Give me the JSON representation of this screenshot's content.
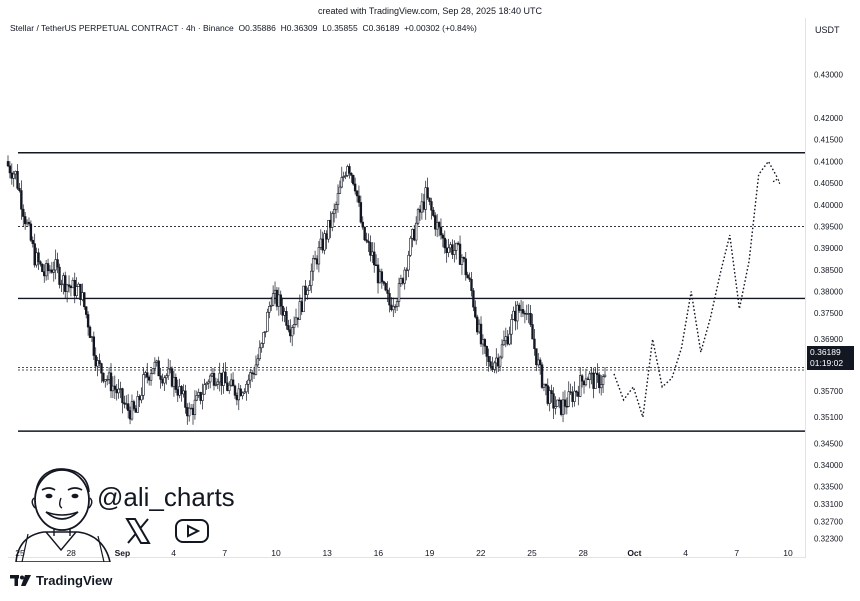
{
  "caption": "created with TradingView.com, Sep 28, 2025 18:40 UTC",
  "legend": {
    "symbol": "Stellar / TetherUS PERPETUAL CONTRACT · 4h · Binance",
    "o_label": "O",
    "o": "0.35886",
    "h_label": "H",
    "h": "0.36309",
    "l_label": "L",
    "l": "0.35855",
    "c_label": "C",
    "c": "0.36189",
    "change": "+0.00302 (+0.84%)"
  },
  "unit": "USDT",
  "price_badge": {
    "price": "0.36189",
    "countdown": "01:19:02"
  },
  "handle": "@ali_charts",
  "brand": "TradingView",
  "colors": {
    "candle": "#131722",
    "background": "#ffffff",
    "badge": "#131722"
  },
  "icons": {
    "x": "x-logo-icon",
    "youtube": "youtube-play-icon",
    "avatar": "cartoon-avatar-icon",
    "brand": "tradingview-logo-icon"
  },
  "chart_data": {
    "type": "candlestick",
    "timeframe": "4h",
    "ylim": [
      0.319,
      0.438
    ],
    "y_ticks": [
      "0.43000",
      "0.42000",
      "0.41500",
      "0.41000",
      "0.40500",
      "0.40000",
      "0.39500",
      "0.39000",
      "0.38500",
      "0.38000",
      "0.37500",
      "0.36900",
      "0.35700",
      "0.35100",
      "0.34500",
      "0.34000",
      "0.33500",
      "0.33100",
      "0.32700",
      "0.32300"
    ],
    "x_ticks": [
      "25",
      "28",
      "Sep",
      "4",
      "7",
      "10",
      "13",
      "16",
      "19",
      "22",
      "25",
      "28",
      "Oct",
      "4",
      "7",
      "10"
    ],
    "x_ticks_bold": [
      "Sep",
      "Oct"
    ],
    "horizontal_levels": [
      {
        "price": 0.412,
        "style": "solid"
      },
      {
        "price": 0.3784,
        "style": "solid"
      },
      {
        "price": 0.3478,
        "style": "solid"
      },
      {
        "price": 0.395,
        "style": "dotted"
      },
      {
        "price": 0.3625,
        "style": "dotted"
      },
      {
        "price": 0.3619,
        "style": "dotted"
      }
    ],
    "candle_anchors": [
      [
        0,
        0.409
      ],
      [
        4,
        0.407
      ],
      [
        9,
        0.397
      ],
      [
        14,
        0.388
      ],
      [
        19,
        0.384
      ],
      [
        24,
        0.386
      ],
      [
        28,
        0.383
      ],
      [
        33,
        0.381
      ],
      [
        38,
        0.38
      ],
      [
        42,
        0.373
      ],
      [
        47,
        0.363
      ],
      [
        52,
        0.36
      ],
      [
        57,
        0.357
      ],
      [
        62,
        0.353
      ],
      [
        67,
        0.352
      ],
      [
        71,
        0.359
      ],
      [
        76,
        0.363
      ],
      [
        81,
        0.361
      ],
      [
        86,
        0.36
      ],
      [
        91,
        0.356
      ],
      [
        95,
        0.352
      ],
      [
        100,
        0.355
      ],
      [
        105,
        0.36
      ],
      [
        110,
        0.361
      ],
      [
        115,
        0.358
      ],
      [
        120,
        0.357
      ],
      [
        125,
        0.359
      ],
      [
        129,
        0.362
      ],
      [
        133,
        0.367
      ],
      [
        138,
        0.379
      ],
      [
        143,
        0.377
      ],
      [
        148,
        0.372
      ],
      [
        153,
        0.376
      ],
      [
        157,
        0.382
      ],
      [
        162,
        0.388
      ],
      [
        166,
        0.392
      ],
      [
        171,
        0.398
      ],
      [
        175,
        0.405
      ],
      [
        178,
        0.41
      ],
      [
        182,
        0.405
      ],
      [
        186,
        0.393
      ],
      [
        191,
        0.388
      ],
      [
        196,
        0.381
      ],
      [
        200,
        0.377
      ],
      [
        205,
        0.38
      ],
      [
        210,
        0.389
      ],
      [
        215,
        0.397
      ],
      [
        219,
        0.402
      ],
      [
        224,
        0.396
      ],
      [
        229,
        0.391
      ],
      [
        233,
        0.39
      ],
      [
        238,
        0.388
      ],
      [
        243,
        0.38
      ],
      [
        248,
        0.368
      ],
      [
        252,
        0.363
      ],
      [
        257,
        0.365
      ],
      [
        262,
        0.37
      ],
      [
        266,
        0.375
      ],
      [
        271,
        0.377
      ],
      [
        275,
        0.369
      ],
      [
        279,
        0.361
      ],
      [
        284,
        0.355
      ],
      [
        289,
        0.353
      ],
      [
        294,
        0.355
      ],
      [
        299,
        0.358
      ],
      [
        303,
        0.361
      ],
      [
        308,
        0.359
      ],
      [
        313,
        0.36
      ]
    ],
    "projection": [
      [
        0.361,
        0.355
      ],
      [
        0.358,
        0.351
      ],
      [
        0.369,
        0.358
      ],
      [
        0.36,
        0.367
      ],
      [
        0.38,
        0.366
      ],
      [
        0.374,
        0.384
      ],
      [
        0.393,
        0.376
      ],
      [
        0.387,
        0.407
      ],
      [
        0.41,
        0.406
      ]
    ]
  }
}
